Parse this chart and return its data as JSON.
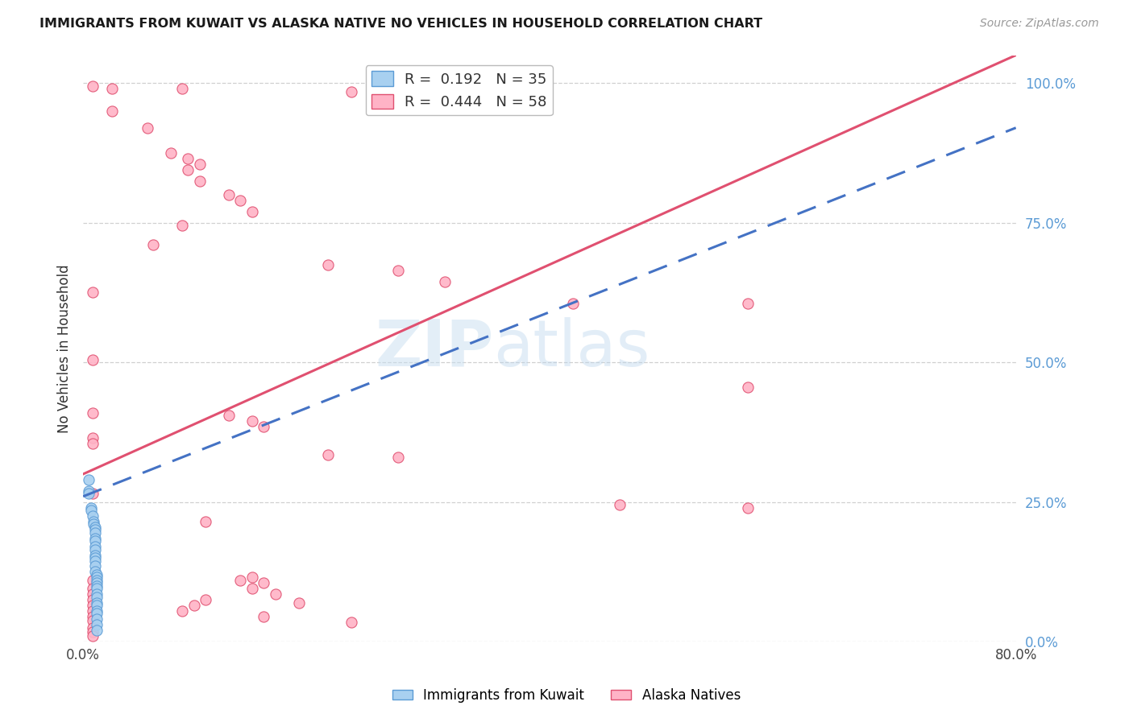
{
  "title": "IMMIGRANTS FROM KUWAIT VS ALASKA NATIVE NO VEHICLES IN HOUSEHOLD CORRELATION CHART",
  "source": "Source: ZipAtlas.com",
  "ylabel": "No Vehicles in Household",
  "r1": 0.192,
  "n1": 35,
  "r2": 0.444,
  "n2": 58,
  "watermark_zip": "ZIP",
  "watermark_atlas": "atlas",
  "color_blue_fill": "#a8d0f0",
  "color_blue_edge": "#5b9bd5",
  "color_blue_line": "#4472c4",
  "color_pink_fill": "#ffb3c6",
  "color_pink_edge": "#e05070",
  "color_pink_line": "#e05070",
  "color_axis_right": "#5b9bd5",
  "color_grid": "#d0d0d0",
  "background_color": "#ffffff",
  "scatter_blue": [
    [
      0.005,
      0.29
    ],
    [
      0.005,
      0.27
    ],
    [
      0.005,
      0.265
    ],
    [
      0.007,
      0.24
    ],
    [
      0.007,
      0.235
    ],
    [
      0.008,
      0.225
    ],
    [
      0.009,
      0.215
    ],
    [
      0.009,
      0.21
    ],
    [
      0.01,
      0.205
    ],
    [
      0.01,
      0.2
    ],
    [
      0.01,
      0.195
    ],
    [
      0.01,
      0.185
    ],
    [
      0.01,
      0.18
    ],
    [
      0.01,
      0.17
    ],
    [
      0.01,
      0.165
    ],
    [
      0.01,
      0.155
    ],
    [
      0.01,
      0.15
    ],
    [
      0.01,
      0.145
    ],
    [
      0.01,
      0.135
    ],
    [
      0.01,
      0.125
    ],
    [
      0.012,
      0.12
    ],
    [
      0.012,
      0.115
    ],
    [
      0.012,
      0.11
    ],
    [
      0.012,
      0.105
    ],
    [
      0.012,
      0.1
    ],
    [
      0.012,
      0.095
    ],
    [
      0.012,
      0.085
    ],
    [
      0.012,
      0.08
    ],
    [
      0.012,
      0.07
    ],
    [
      0.012,
      0.065
    ],
    [
      0.012,
      0.055
    ],
    [
      0.012,
      0.05
    ],
    [
      0.012,
      0.04
    ],
    [
      0.012,
      0.03
    ],
    [
      0.012,
      0.02
    ]
  ],
  "scatter_pink": [
    [
      0.008,
      0.995
    ],
    [
      0.025,
      0.99
    ],
    [
      0.085,
      0.99
    ],
    [
      0.23,
      0.985
    ],
    [
      0.025,
      0.95
    ],
    [
      0.055,
      0.92
    ],
    [
      0.075,
      0.875
    ],
    [
      0.09,
      0.865
    ],
    [
      0.1,
      0.855
    ],
    [
      0.09,
      0.845
    ],
    [
      0.1,
      0.825
    ],
    [
      0.125,
      0.8
    ],
    [
      0.135,
      0.79
    ],
    [
      0.145,
      0.77
    ],
    [
      0.085,
      0.745
    ],
    [
      0.06,
      0.71
    ],
    [
      0.21,
      0.675
    ],
    [
      0.27,
      0.665
    ],
    [
      0.31,
      0.645
    ],
    [
      0.008,
      0.625
    ],
    [
      0.42,
      0.605
    ],
    [
      0.57,
      0.605
    ],
    [
      0.008,
      0.505
    ],
    [
      0.57,
      0.455
    ],
    [
      0.008,
      0.41
    ],
    [
      0.125,
      0.405
    ],
    [
      0.145,
      0.395
    ],
    [
      0.155,
      0.385
    ],
    [
      0.008,
      0.365
    ],
    [
      0.008,
      0.355
    ],
    [
      0.21,
      0.335
    ],
    [
      0.27,
      0.33
    ],
    [
      0.46,
      0.245
    ],
    [
      0.57,
      0.24
    ],
    [
      0.008,
      0.265
    ],
    [
      0.105,
      0.215
    ],
    [
      0.145,
      0.115
    ],
    [
      0.135,
      0.11
    ],
    [
      0.155,
      0.105
    ],
    [
      0.008,
      0.11
    ],
    [
      0.008,
      0.095
    ],
    [
      0.008,
      0.085
    ],
    [
      0.008,
      0.075
    ],
    [
      0.008,
      0.065
    ],
    [
      0.008,
      0.055
    ],
    [
      0.008,
      0.045
    ],
    [
      0.008,
      0.038
    ],
    [
      0.008,
      0.025
    ],
    [
      0.008,
      0.018
    ],
    [
      0.008,
      0.01
    ],
    [
      0.085,
      0.055
    ],
    [
      0.095,
      0.065
    ],
    [
      0.105,
      0.075
    ],
    [
      0.145,
      0.095
    ],
    [
      0.155,
      0.045
    ],
    [
      0.165,
      0.085
    ],
    [
      0.185,
      0.07
    ],
    [
      0.23,
      0.035
    ]
  ],
  "pink_line": [
    0.0,
    0.3,
    0.8,
    1.05
  ],
  "blue_line": [
    0.0,
    0.26,
    0.8,
    0.92
  ],
  "xlim": [
    0.0,
    0.8
  ],
  "ylim": [
    0.0,
    1.05
  ],
  "yticks": [
    0.0,
    0.25,
    0.5,
    0.75,
    1.0
  ],
  "ytick_labels": [
    "0.0%",
    "25.0%",
    "50.0%",
    "75.0%",
    "100.0%"
  ],
  "xtick_left": "0.0%",
  "xtick_right": "80.0%",
  "bottom_legend_left": "Immigrants from Kuwait",
  "bottom_legend_right": "Alaska Natives"
}
